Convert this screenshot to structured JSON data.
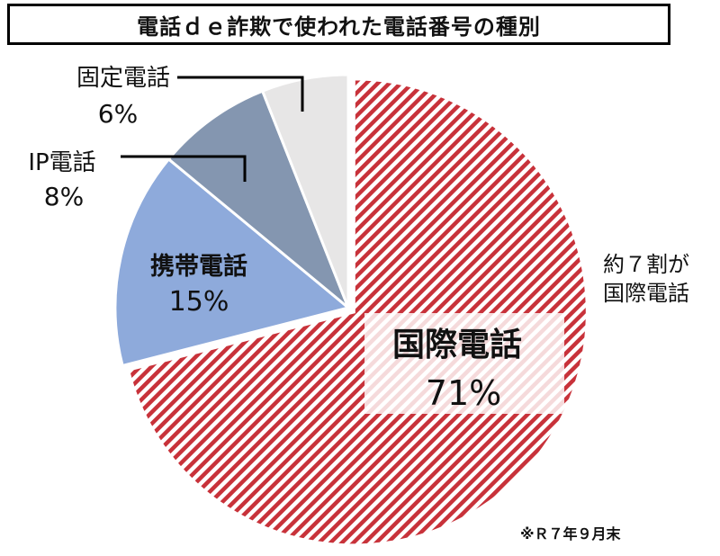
{
  "chart_data": {
    "type": "pie",
    "title": "電話ｄｅ詐欺で使われた電話番号の種別",
    "slices": [
      {
        "name": "国際電話",
        "value": 71,
        "label": "71%",
        "color": "#c8323a",
        "pattern": "diagonal-hatch"
      },
      {
        "name": "携帯電話",
        "value": 15,
        "label": "15%",
        "color": "#8eaadb"
      },
      {
        "name": "IP電話",
        "value": 8,
        "label": "8%",
        "color": "#8496b0"
      },
      {
        "name": "固定電話",
        "value": 6,
        "label": "6%",
        "color": "#e7e6e6"
      }
    ],
    "annotation": {
      "line1": "約７割が",
      "line2": "国際電話"
    },
    "footnote": "※Ｒ７年９月末"
  }
}
